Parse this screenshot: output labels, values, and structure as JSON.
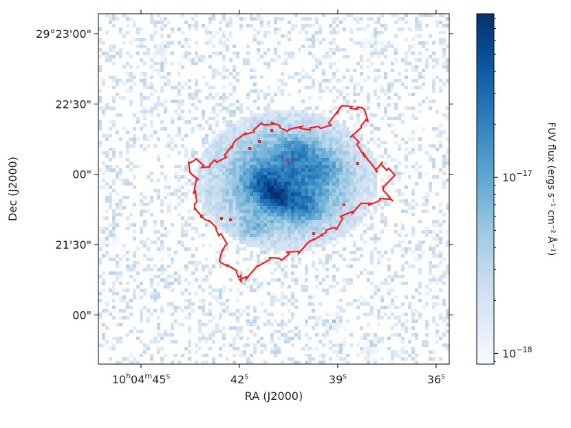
{
  "chart_data": {
    "type": "heatmap",
    "xlabel": "RA (J2000)",
    "ylabel": "Dec (J2000)",
    "x_ticks": [
      {
        "h": "10",
        "m": "04",
        "s": "45",
        "ra_seconds": 45
      },
      {
        "s": "42",
        "ra_seconds": 42
      },
      {
        "s": "39",
        "ra_seconds": 39
      },
      {
        "s": "36",
        "ra_seconds": 36
      }
    ],
    "y_ticks": [
      {
        "label": "29°23'00\"",
        "dec_arcsec": 0
      },
      {
        "label": "22'30\"",
        "dec_arcsec": -30
      },
      {
        "label": "00\"",
        "dec_arcsec": -60
      },
      {
        "label": "21'30\"",
        "dec_arcsec": -90
      },
      {
        "label": "00\"",
        "dec_arcsec": -120
      }
    ],
    "xlim_ra_seconds": [
      46.3,
      35.6
    ],
    "ylim_dec_arcsec": [
      8.5,
      -141
    ],
    "colorbar": {
      "label": "FUV flux (ergs s⁻¹ cm⁻² Å⁻¹)",
      "scale": "log",
      "range": [
        8.7e-19,
        8.5e-17
      ],
      "ticks": [
        {
          "value": 1e-18,
          "base": "10",
          "exp": "−18"
        },
        {
          "value": 1e-17,
          "base": "10",
          "exp": "−17"
        }
      ],
      "cmap": "Blues"
    },
    "source": {
      "description_note": "Extended FUV emission centred near RA 10h04m40.6s, Dec 29°22'00\"",
      "center_ra_seconds": 40.6,
      "center_dec_arcsec": -62,
      "contour_color": "#ff1a1a"
    }
  }
}
